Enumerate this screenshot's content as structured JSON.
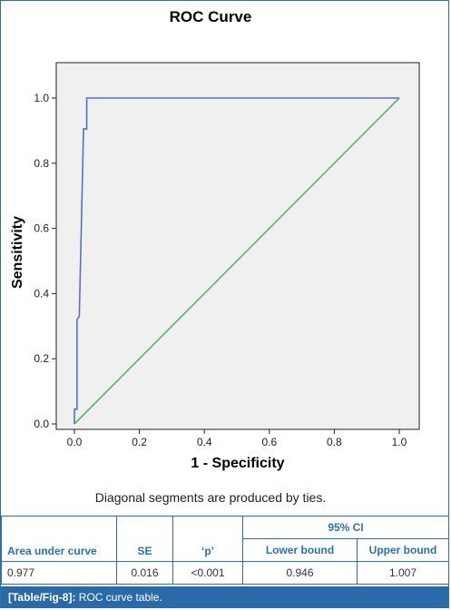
{
  "chart_data": {
    "type": "line",
    "title": "ROC Curve",
    "xlabel": "1 - Specificity",
    "ylabel": "Sensitivity",
    "xlim": [
      0,
      1
    ],
    "ylim": [
      0,
      1
    ],
    "xticks": [
      "0.0",
      "0.2",
      "0.4",
      "0.6",
      "0.8",
      "1.0"
    ],
    "yticks": [
      "0.0",
      "0.2",
      "0.4",
      "0.6",
      "0.8",
      "1.0"
    ],
    "grid": false,
    "series": [
      {
        "color": "#5b6fc4",
        "x": [
          0.0,
          0.0,
          0.008,
          0.008,
          0.015,
          0.028,
          0.028,
          0.038,
          0.038,
          1.0
        ],
        "y": [
          0.0,
          0.045,
          0.045,
          0.32,
          0.33,
          0.9,
          0.905,
          0.905,
          1.0,
          1.0
        ]
      },
      {
        "color": "#55b867",
        "x": [
          0.0,
          1.0
        ],
        "y": [
          0.0,
          1.0
        ]
      }
    ],
    "footnote": "Diagonal segments are produced by ties."
  },
  "table": {
    "group_header": "95% CI",
    "headers": [
      "Area under curve",
      "SE",
      "‘p’",
      "Lower bound",
      "Upper bound"
    ],
    "row": [
      "0.977",
      "0.016",
      "<0.001",
      "0.946",
      "1.007"
    ]
  },
  "caption": {
    "label": "[Table/Fig-8]:",
    "text": "ROC curve table."
  }
}
